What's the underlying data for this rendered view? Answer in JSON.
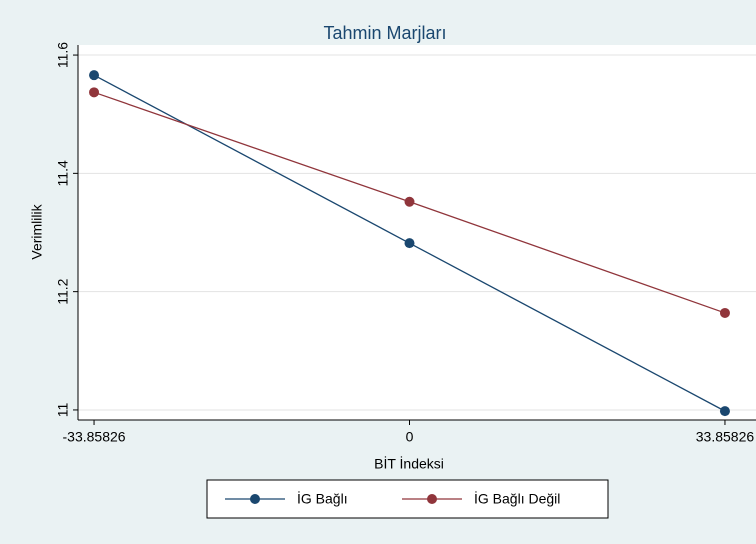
{
  "chart_data": {
    "type": "line",
    "title": "Tahmin Marjları",
    "xlabel": "BİT İndeksi",
    "ylabel": "Verimlilik",
    "x": [
      -33.85826,
      0,
      33.85826
    ],
    "series": [
      {
        "name": "İG Bağlı",
        "color": "#1a476f",
        "values": [
          11.566,
          11.282,
          10.998
        ]
      },
      {
        "name": "İG Bağlı Değil",
        "color": "#90353b",
        "values": [
          11.537,
          11.352,
          11.164
        ]
      }
    ],
    "xlim": [
      -35.58,
      35.58
    ],
    "ylim": [
      10.983,
      11.617
    ],
    "xticks": [
      -33.85826,
      0,
      33.85826
    ],
    "yticks": [
      11,
      11.2,
      11.4,
      11.6
    ],
    "grid": true,
    "legend": "bottom"
  }
}
